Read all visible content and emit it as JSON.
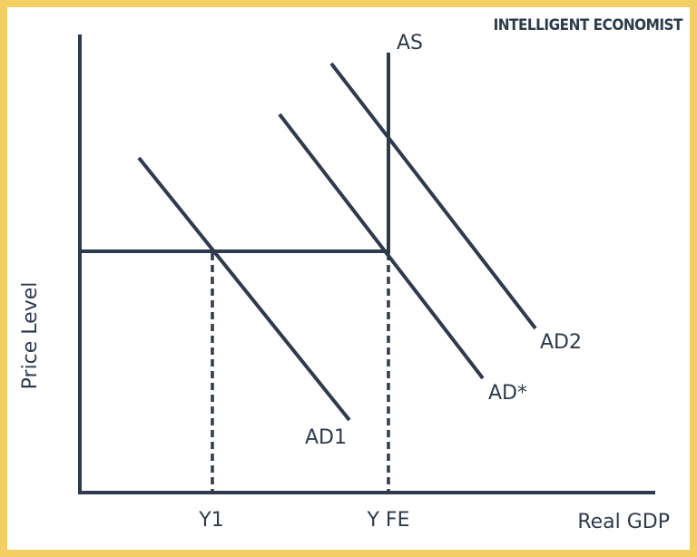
{
  "brand": "INTELLIGENT ECONOMIST",
  "curves": {
    "as": "AS",
    "ad1": "AD1",
    "ad_star": "AD*",
    "ad2": "AD2"
  },
  "axes": {
    "x_label": "Real GDP",
    "y_label": "Price Level"
  },
  "x_markers": {
    "y1": "Y1",
    "yfe": "Y FE"
  }
}
